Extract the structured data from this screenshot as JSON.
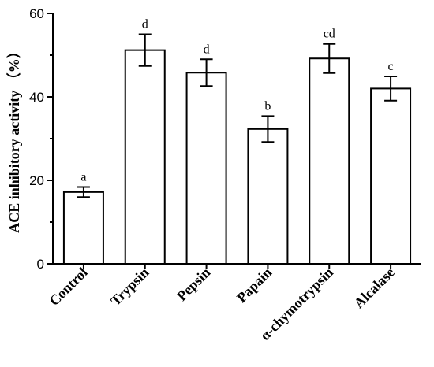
{
  "chart_data": {
    "type": "bar",
    "ylabel": "ACE inhibitory activity （%）",
    "ylim": [
      0,
      60
    ],
    "yticks": [
      0,
      20,
      40,
      60
    ],
    "categories": [
      "Control",
      "Trypsin",
      "Pepsin",
      "Papain",
      "α-chymotrypsin",
      "Alcalase"
    ],
    "values": [
      17.2,
      51.2,
      45.8,
      32.3,
      49.2,
      42.0
    ],
    "errors": [
      1.2,
      3.8,
      3.2,
      3.1,
      3.5,
      2.9
    ],
    "significance": [
      "a",
      "d",
      "d",
      "b",
      "cd",
      "c"
    ],
    "grid": false,
    "bar_fill": "#ffffff",
    "bar_stroke": "#000000"
  }
}
